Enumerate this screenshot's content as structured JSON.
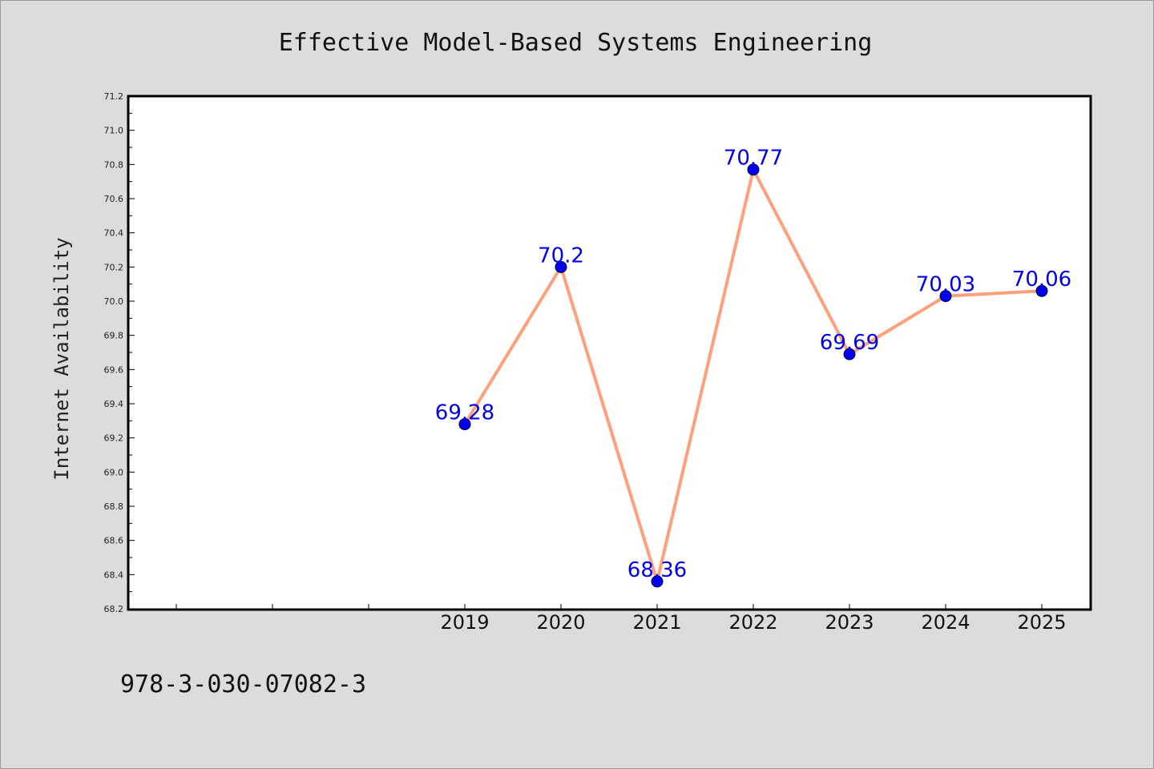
{
  "chart_data": {
    "type": "line",
    "title": "Effective Model-Based Systems Engineering",
    "ylabel": "Internet Availability",
    "xlabel": "",
    "categories": [
      "",
      "",
      "",
      "2019",
      "2020",
      "2021",
      "2022",
      "2023",
      "2024",
      "2025"
    ],
    "series": [
      {
        "values": [
          null,
          null,
          null,
          69.28,
          70.2,
          68.36,
          70.77,
          69.69,
          70.03,
          70.06
        ],
        "labels": [
          null,
          null,
          null,
          "69.28",
          "70.2",
          "68.36",
          "70.77",
          "69.69",
          "70.03",
          "70.06"
        ]
      }
    ],
    "ylim": [
      68.2,
      71.2
    ],
    "yticks": [
      "68.2",
      "68.4",
      "68.6",
      "68.8",
      "69.0",
      "69.2",
      "69.4",
      "69.6",
      "69.8",
      "70.0",
      "70.2",
      "70.4",
      "70.6",
      "70.8",
      "71.0",
      "71.2"
    ],
    "grid": false,
    "colors": {
      "line": "#ffa07a",
      "marker": "#0000ee",
      "label": "#0000ee",
      "background": "#dcdcdc",
      "plot": "#ffffff"
    }
  },
  "footer": {
    "isbn": "978-3-030-07082-3"
  }
}
